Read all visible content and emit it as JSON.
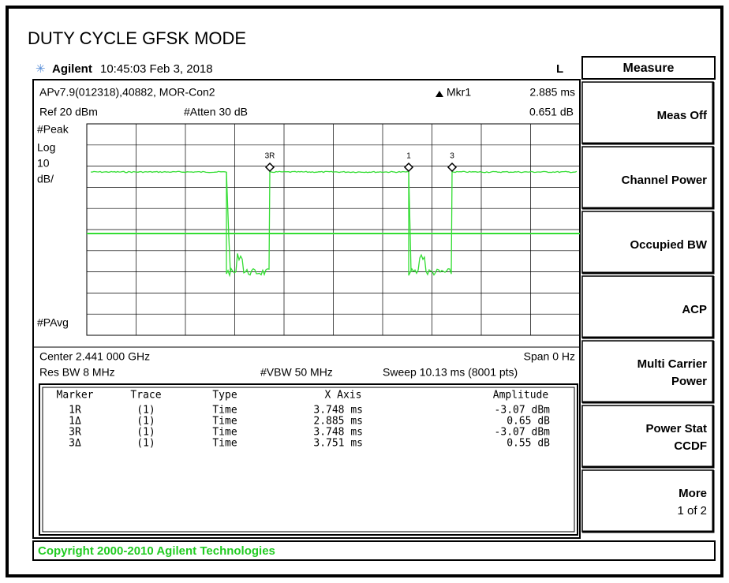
{
  "title": "DUTY CYCLE GFSK MODE",
  "header": {
    "brand": "Agilent",
    "time": "10:45:03 Feb 3, 2018",
    "indicator": "L"
  },
  "screen": {
    "info": "APv7.9(012318),40882, MOR-Con2",
    "marker_label": "Mkr1",
    "marker_x": "2.885 ms",
    "ref": "Ref 20 dBm",
    "atten": "#Atten 30 dB",
    "marker_y": "0.651 dB",
    "detector": "#Peak",
    "scale": [
      "Log",
      "10",
      "dB/"
    ],
    "average": "#PAvg",
    "center": "Center 2.441 000 GHz",
    "span": "Span 0 Hz",
    "res_bw": "Res BW 8 MHz",
    "vbw": "#VBW 50 MHz",
    "sweep": "Sweep 10.13 ms (8001 pts)",
    "trace_markers": [
      "3R",
      "1",
      "3"
    ]
  },
  "marker_table": {
    "columns": [
      "Marker",
      "Trace",
      "Type",
      "X Axis",
      "Amplitude"
    ],
    "rows": [
      [
        "1R",
        "(1)",
        "Time",
        "3.748 ms",
        "-3.07 dBm"
      ],
      [
        "1Δ",
        "(1)",
        "Time",
        "2.885 ms",
        "0.65 dB"
      ],
      [
        "3R",
        "(1)",
        "Time",
        "3.748 ms",
        "-3.07 dBm"
      ],
      [
        "3Δ",
        "(1)",
        "Time",
        "3.751 ms",
        "0.55 dB"
      ]
    ]
  },
  "menu": {
    "title": "Measure",
    "keys": [
      [
        "Meas Off"
      ],
      [
        "Channel Power"
      ],
      [
        "Occupied BW"
      ],
      [
        "ACP"
      ],
      [
        "Multi Carrier",
        "Power"
      ],
      [
        "Power Stat",
        "CCDF"
      ],
      [
        "More",
        "1 of 2"
      ]
    ]
  },
  "status": "Copyright 2000-2010 Agilent Technologies"
}
